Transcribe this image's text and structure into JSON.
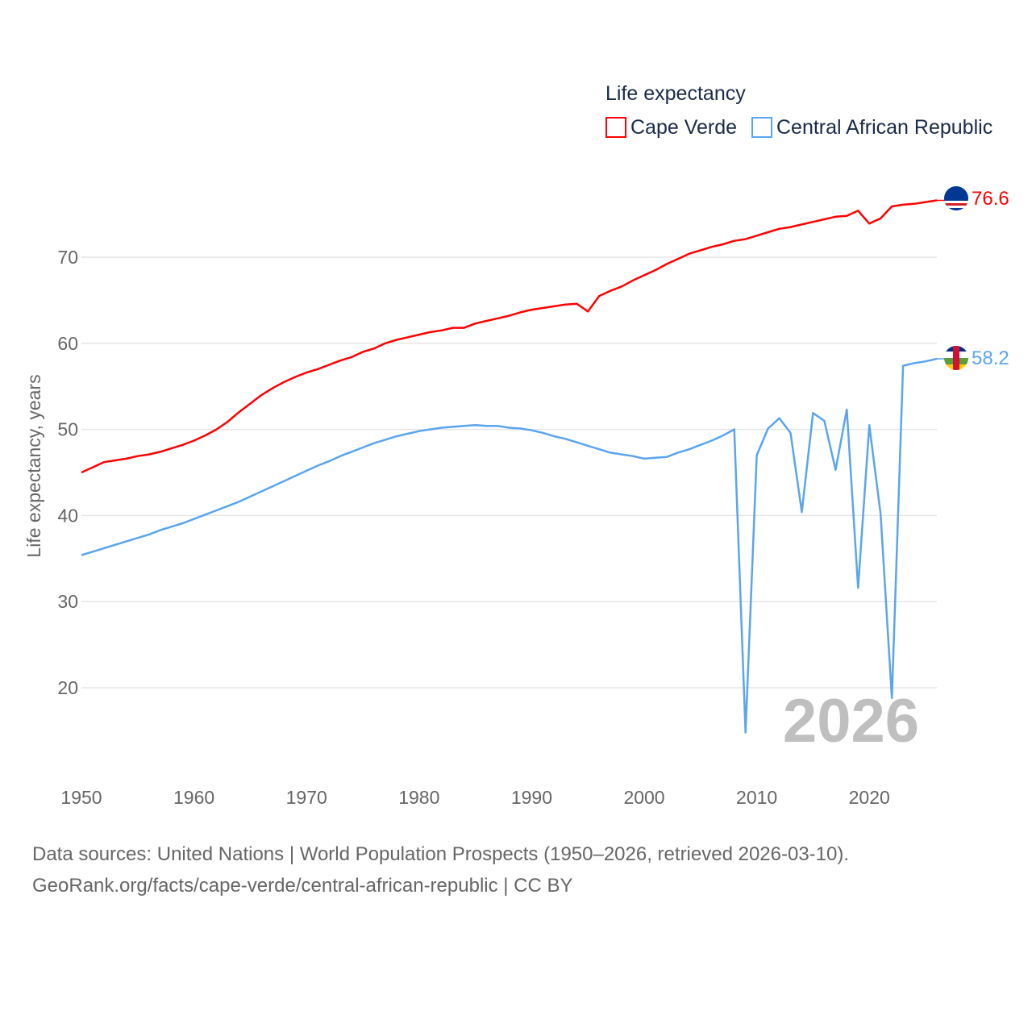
{
  "chart_data": {
    "type": "line",
    "title": "Life expectancy",
    "ylabel": "Life expectancy, years",
    "xlabel": "",
    "xlim": [
      1950,
      2026
    ],
    "ylim": [
      10,
      80
    ],
    "grid": true,
    "legend_position": "top-right",
    "x_ticks": [
      "1950",
      "1960",
      "1970",
      "1980",
      "1990",
      "2000",
      "2010",
      "2020"
    ],
    "y_ticks": [
      "20",
      "30",
      "40",
      "50",
      "60",
      "70"
    ],
    "year_watermark": "2026",
    "x_start": 1950,
    "series": [
      {
        "name": "Cape Verde",
        "color": "#ff0000",
        "end_label": "76.6",
        "values": [
          45.0,
          45.6,
          46.2,
          46.4,
          46.6,
          46.9,
          47.1,
          47.4,
          47.8,
          48.2,
          48.7,
          49.3,
          50.0,
          50.9,
          52.0,
          53.0,
          54.0,
          54.8,
          55.5,
          56.1,
          56.6,
          57.0,
          57.5,
          58.0,
          58.4,
          59.0,
          59.4,
          60.0,
          60.4,
          60.7,
          61.0,
          61.3,
          61.5,
          61.8,
          61.8,
          62.3,
          62.6,
          62.9,
          63.2,
          63.6,
          63.9,
          64.1,
          64.3,
          64.5,
          64.6,
          63.7,
          65.5,
          66.1,
          66.6,
          67.3,
          67.9,
          68.5,
          69.2,
          69.8,
          70.4,
          70.8,
          71.2,
          71.5,
          71.9,
          72.1,
          72.5,
          72.9,
          73.3,
          73.5,
          73.8,
          74.1,
          74.4,
          74.7,
          74.8,
          75.4,
          73.9,
          74.5,
          75.9,
          76.1,
          76.2,
          76.4,
          76.6
        ]
      },
      {
        "name": "Central African Republic",
        "color": "#5aa5ef",
        "end_label": "58.2",
        "values": [
          35.4,
          35.8,
          36.2,
          36.6,
          37.0,
          37.4,
          37.8,
          38.3,
          38.7,
          39.1,
          39.6,
          40.1,
          40.6,
          41.1,
          41.6,
          42.2,
          42.8,
          43.4,
          44.0,
          44.6,
          45.2,
          45.8,
          46.3,
          46.9,
          47.4,
          47.9,
          48.4,
          48.8,
          49.2,
          49.5,
          49.8,
          50.0,
          50.2,
          50.3,
          50.4,
          50.5,
          50.4,
          50.4,
          50.2,
          50.1,
          49.9,
          49.6,
          49.2,
          48.9,
          48.5,
          48.1,
          47.7,
          47.3,
          47.1,
          46.9,
          46.6,
          46.7,
          46.8,
          47.3,
          47.7,
          48.2,
          48.7,
          49.3,
          50.0,
          14.8,
          47.0,
          50.1,
          51.3,
          49.6,
          40.4,
          51.9,
          51.0,
          45.3,
          52.3,
          31.6,
          50.5,
          40.2,
          18.8,
          57.4,
          57.7,
          57.9,
          58.2
        ]
      }
    ]
  },
  "footer": {
    "line1": "Data sources: United Nations | World Population Prospects (1950–2026, retrieved 2026-03-10).",
    "line2": "GeoRank.org/facts/cape-verde/central-african-republic | CC BY"
  }
}
